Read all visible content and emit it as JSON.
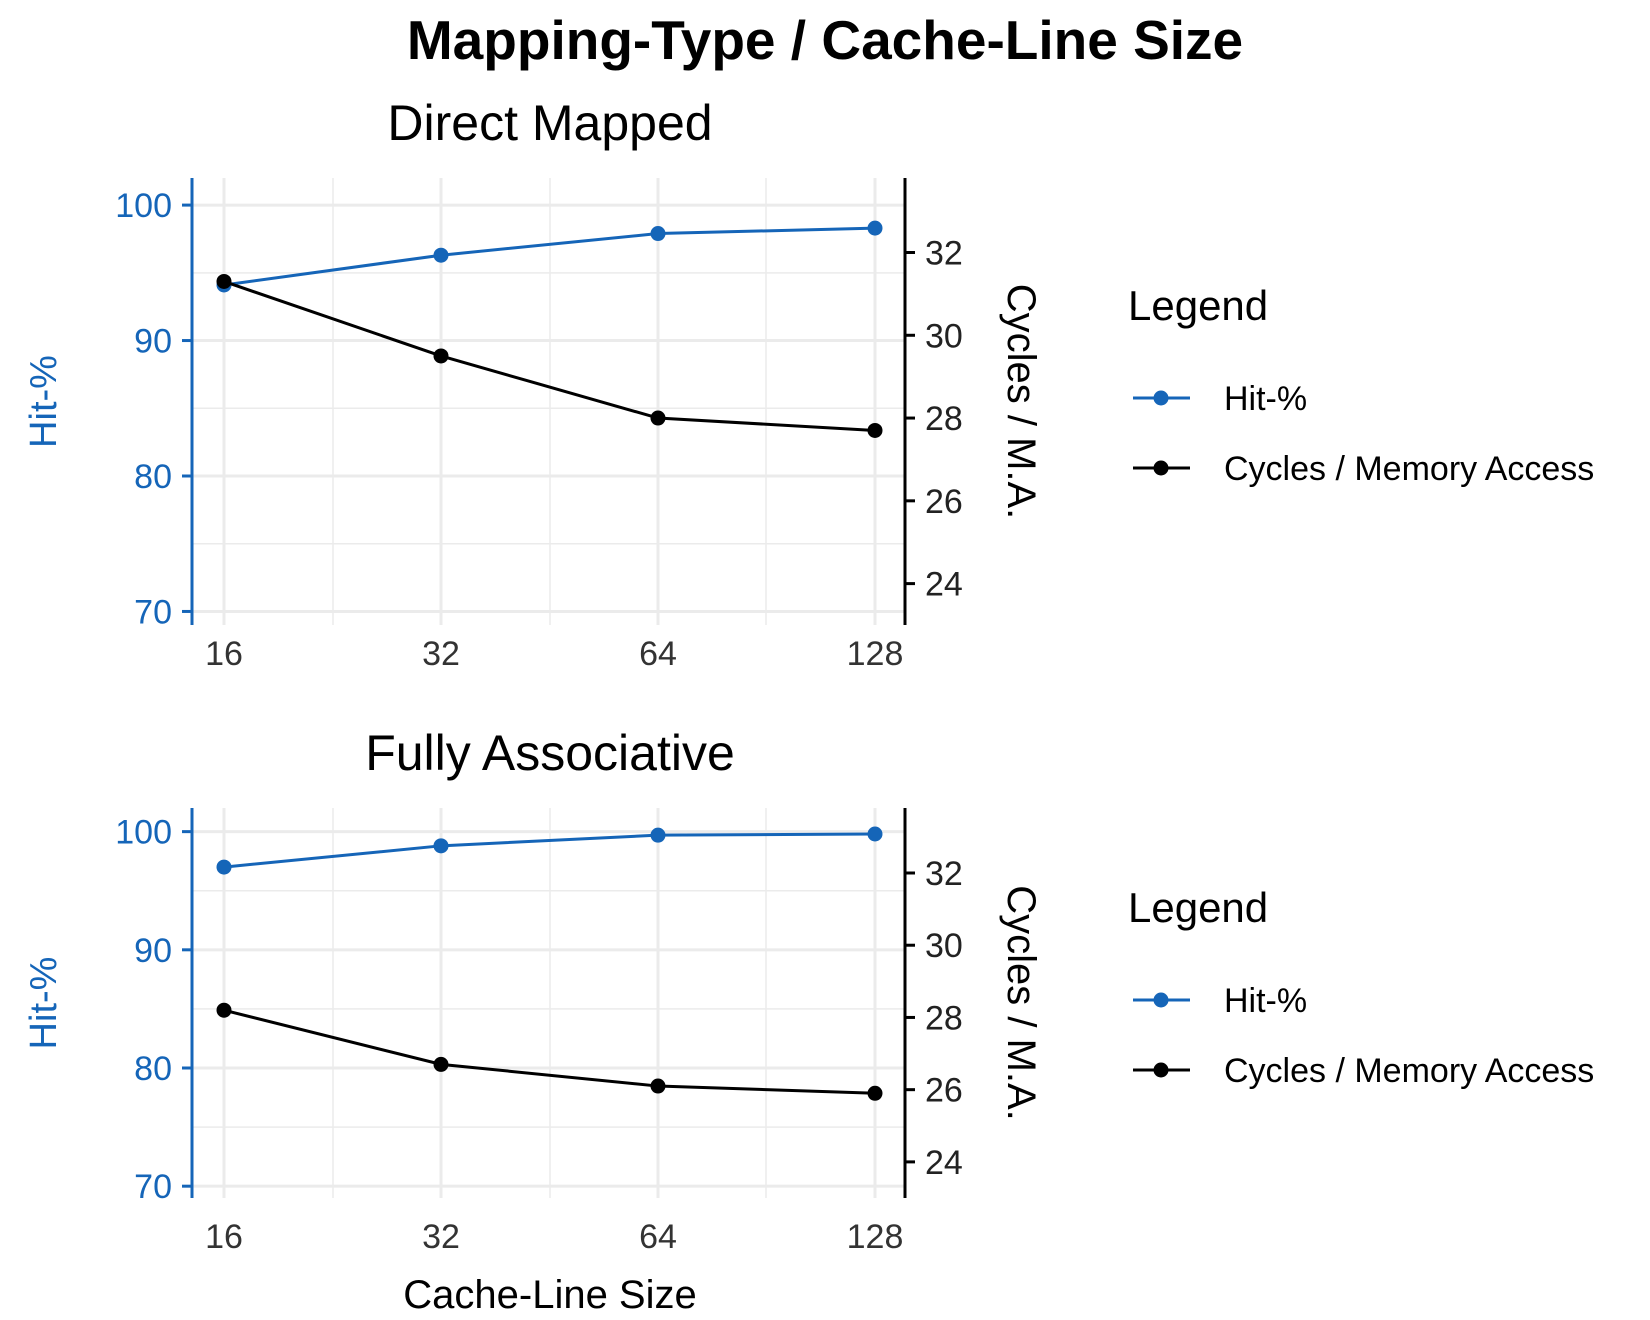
{
  "title": "Mapping-Type / Cache-Line Size",
  "colors": {
    "hit": "#1565b8",
    "cycles": "#000000",
    "grid": "#ebebeb"
  },
  "chart_data": [
    {
      "type": "line",
      "title": "Direct Mapped",
      "x": [
        16,
        32,
        64,
        128
      ],
      "x_scale": "log2",
      "x_ticks": [
        "16",
        "32",
        "64",
        "128"
      ],
      "xlabel": "",
      "ylabel_left": "Hit-%",
      "ylim_left": [
        69,
        102
      ],
      "yticks_left": [
        70,
        80,
        90,
        100
      ],
      "ylabel_right": "Cycles / M.A.",
      "ylim_right": [
        23,
        33.8
      ],
      "yticks_right": [
        24,
        26,
        28,
        30,
        32
      ],
      "series": [
        {
          "name": "Hit-%",
          "axis": "left",
          "values": [
            94.1,
            96.3,
            97.9,
            98.3
          ]
        },
        {
          "name": "Cycles / Memory Access",
          "axis": "right",
          "values": [
            31.3,
            29.5,
            28.0,
            27.7
          ]
        }
      ],
      "legend": {
        "title": "Legend",
        "position": "right"
      },
      "grid": true
    },
    {
      "type": "line",
      "title": "Fully Associative",
      "x": [
        16,
        32,
        64,
        128
      ],
      "x_scale": "log2",
      "x_ticks": [
        "16",
        "32",
        "64",
        "128"
      ],
      "xlabel": "Cache-Line Size",
      "ylabel_left": "Hit-%",
      "ylim_left": [
        69,
        102
      ],
      "yticks_left": [
        70,
        80,
        90,
        100
      ],
      "ylabel_right": "Cycles / M.A.",
      "ylim_right": [
        23,
        33.8
      ],
      "yticks_right": [
        24,
        26,
        28,
        30,
        32
      ],
      "series": [
        {
          "name": "Hit-%",
          "axis": "left",
          "values": [
            97.0,
            98.8,
            99.7,
            99.8
          ]
        },
        {
          "name": "Cycles / Memory Access",
          "axis": "right",
          "values": [
            28.2,
            26.7,
            26.1,
            25.9
          ]
        }
      ],
      "legend": {
        "title": "Legend",
        "position": "right"
      },
      "grid": true
    }
  ]
}
